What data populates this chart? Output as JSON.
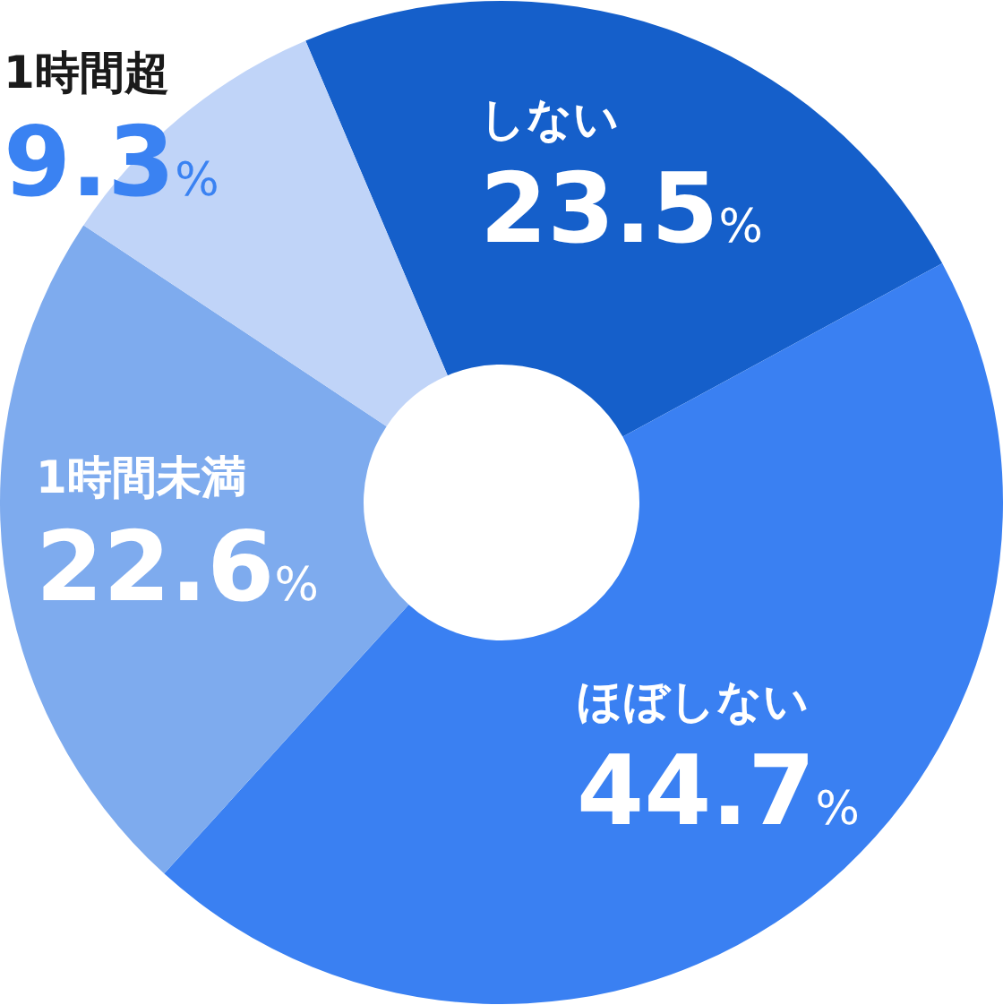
{
  "chart_data": {
    "type": "donut",
    "categories": [
      "しない",
      "ほぼしない",
      "1時間未満",
      "1時間超"
    ],
    "values": [
      23.5,
      44.7,
      22.6,
      9.3
    ],
    "value_labels": [
      "23.5%",
      "44.7%",
      "22.6%",
      "9.3%"
    ],
    "colors": [
      "#155fca",
      "#3a80f2",
      "#7eabee",
      "#c0d4f8"
    ]
  }
}
